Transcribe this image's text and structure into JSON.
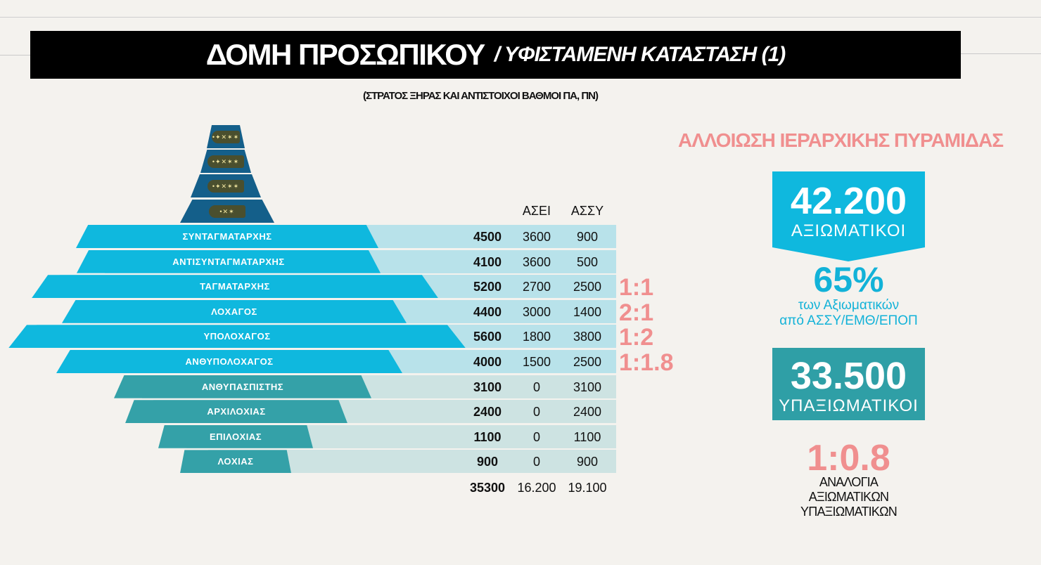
{
  "header": {
    "title_main": "ΔΟΜΗ ΠΡΟΣΩΠΙΚΟΥ",
    "title_sub": "/ ΥΦΙΣΤΑΜΕΝΗ ΚΑΤΑΣΤΑΣΗ  (1)",
    "subtitle": "(ΣΤΡΑΤΟΣ ΞΗΡΑΣ ΚΑΙ ΑΝΤΙΣΤΟΙΧΟΙ ΒΑΘΜΟΙ ΠΑ, ΠΝ)"
  },
  "insignia": [
    "•✦✕✶✶",
    "•✦✕✶✶",
    "•✦✕✶✶",
    "•✕✶"
  ],
  "table": {
    "col_asei": "ΑΣΕΙ",
    "col_assy": "ΑΣΣΥ",
    "rows": [
      {
        "rank": "ΣΥΝΤΑΓΜΑΤΑΡΧΗΣ",
        "total": "4500",
        "asei": "3600",
        "assy": "900",
        "ratio": ""
      },
      {
        "rank": "ΑΝΤΙΣΥΝΤΑΓΜΑΤΑΡΧΗΣ",
        "total": "4100",
        "asei": "3600",
        "assy": "500",
        "ratio": ""
      },
      {
        "rank": "ΤΑΓΜΑΤΑΡΧΗΣ",
        "total": "5200",
        "asei": "2700",
        "assy": "2500",
        "ratio": "1:1"
      },
      {
        "rank": "ΛΟΧΑΓΟΣ",
        "total": "4400",
        "asei": "3000",
        "assy": "1400",
        "ratio": "2:1"
      },
      {
        "rank": "ΥΠΟΛΟΧΑΓΟΣ",
        "total": "5600",
        "asei": "1800",
        "assy": "3800",
        "ratio": "1:2"
      },
      {
        "rank": "ΑΝΘΥΠΟΛΟΧΑΓΟΣ",
        "total": "4000",
        "asei": "1500",
        "assy": "2500",
        "ratio": "1:1.8"
      },
      {
        "rank": "ΑΝΘΥΠΑΣΠΙΣΤΗΣ",
        "total": "3100",
        "asei": "0",
        "assy": "3100",
        "ratio": ""
      },
      {
        "rank": "ΑΡΧΙΛΟΧΙΑΣ",
        "total": "2400",
        "asei": "0",
        "assy": "2400",
        "ratio": ""
      },
      {
        "rank": "ΕΠΙΛΟΧΙΑΣ",
        "total": "1100",
        "asei": "0",
        "assy": "1100",
        "ratio": ""
      },
      {
        "rank": "ΛΟΧΙΑΣ",
        "total": "900",
        "asei": "0",
        "assy": "900",
        "ratio": ""
      }
    ],
    "sum_total": "35300",
    "sum_asei": "16.200",
    "sum_assy": "19.100"
  },
  "summary": {
    "title": "ΑΛΛΟΙΩΣΗ ΙΕΡΑΡΧΙΚΗΣ ΠΥΡΑΜΙΔΑΣ",
    "officers_count": "42.200",
    "officers_label": "ΑΞΙΩΜΑΤΙΚΟΙ",
    "pct_value": "65%",
    "pct_line1": "των Αξιωματικών",
    "pct_line2": "από ΑΣΣΥ/ΕΜΘ/ΕΠΟΠ",
    "nco_count": "33.500",
    "nco_label": "ΥΠΑΞΙΩΜΑΤΙΚΟΙ",
    "ratio_value": "1:0.8",
    "ratio_line1": "ΑΝΑΛΟΓΙΑ",
    "ratio_line2": "ΑΞΙΩΜΑΤΙΚΩΝ",
    "ratio_line3": "ΥΠΑΞΙΩΜΑΤΙΚΩΝ"
  },
  "colors": {
    "officer_band": "#0fb8de",
    "officer_row_bg": "#b8e2ea",
    "nco_band": "#34a1a8",
    "nco_row_bg": "#cde3e2",
    "general_tier": "#145f8a",
    "accent_pink": "#f08f8f"
  }
}
